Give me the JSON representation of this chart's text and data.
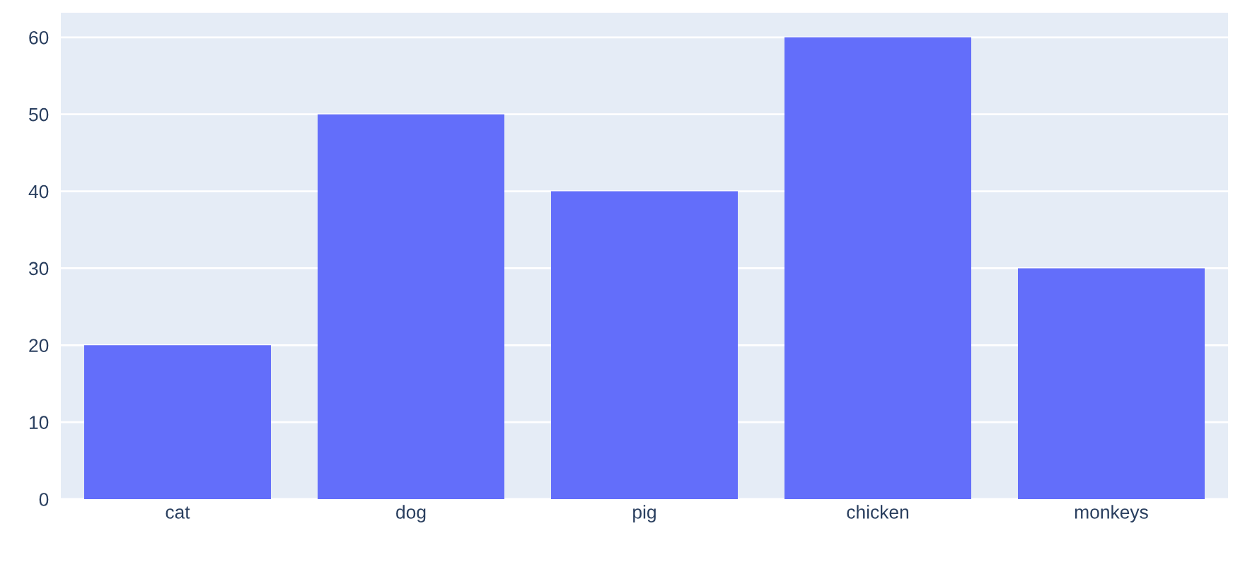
{
  "chart_data": {
    "type": "bar",
    "categories": [
      "cat",
      "dog",
      "pig",
      "chicken",
      "monkeys"
    ],
    "values": [
      20,
      50,
      40,
      60,
      30
    ],
    "color": "#636efa",
    "ylim": [
      0,
      63.2
    ],
    "yticks": [
      0,
      10,
      20,
      30,
      40,
      50,
      60
    ],
    "grid": "y"
  }
}
